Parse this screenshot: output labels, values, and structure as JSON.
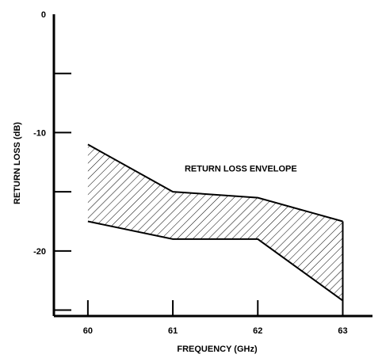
{
  "chart_data": {
    "type": "area",
    "xlabel": "FREQUENCY (GHz)",
    "ylabel": "RETURN LOSS (dB)",
    "xlim": [
      59.6,
      63.35
    ],
    "ylim": [
      -25.5,
      0
    ],
    "x_ticks": [
      60,
      61,
      62,
      63
    ],
    "x_tick_labels": [
      "60",
      "61",
      "62",
      "63"
    ],
    "y_ticks": [
      0,
      -5,
      -10,
      -15,
      -20,
      -25
    ],
    "y_tick_labels": [
      "0",
      "",
      "-10",
      "",
      "-20",
      ""
    ],
    "grid": false,
    "annotation": {
      "text": "RETURN LOSS ENVELOPE",
      "x": 61.8,
      "y": -13.3
    },
    "envelope": {
      "x": [
        60,
        61,
        62,
        63
      ],
      "upper": [
        -11,
        -15,
        -15.5,
        -17.5
      ],
      "lower": [
        -17.5,
        -19,
        -19,
        -24.2
      ]
    },
    "fill_pattern": "diagonal-hatch",
    "colors": {
      "line": "#000000",
      "hatch": "#000000",
      "background": "#ffffff"
    }
  }
}
